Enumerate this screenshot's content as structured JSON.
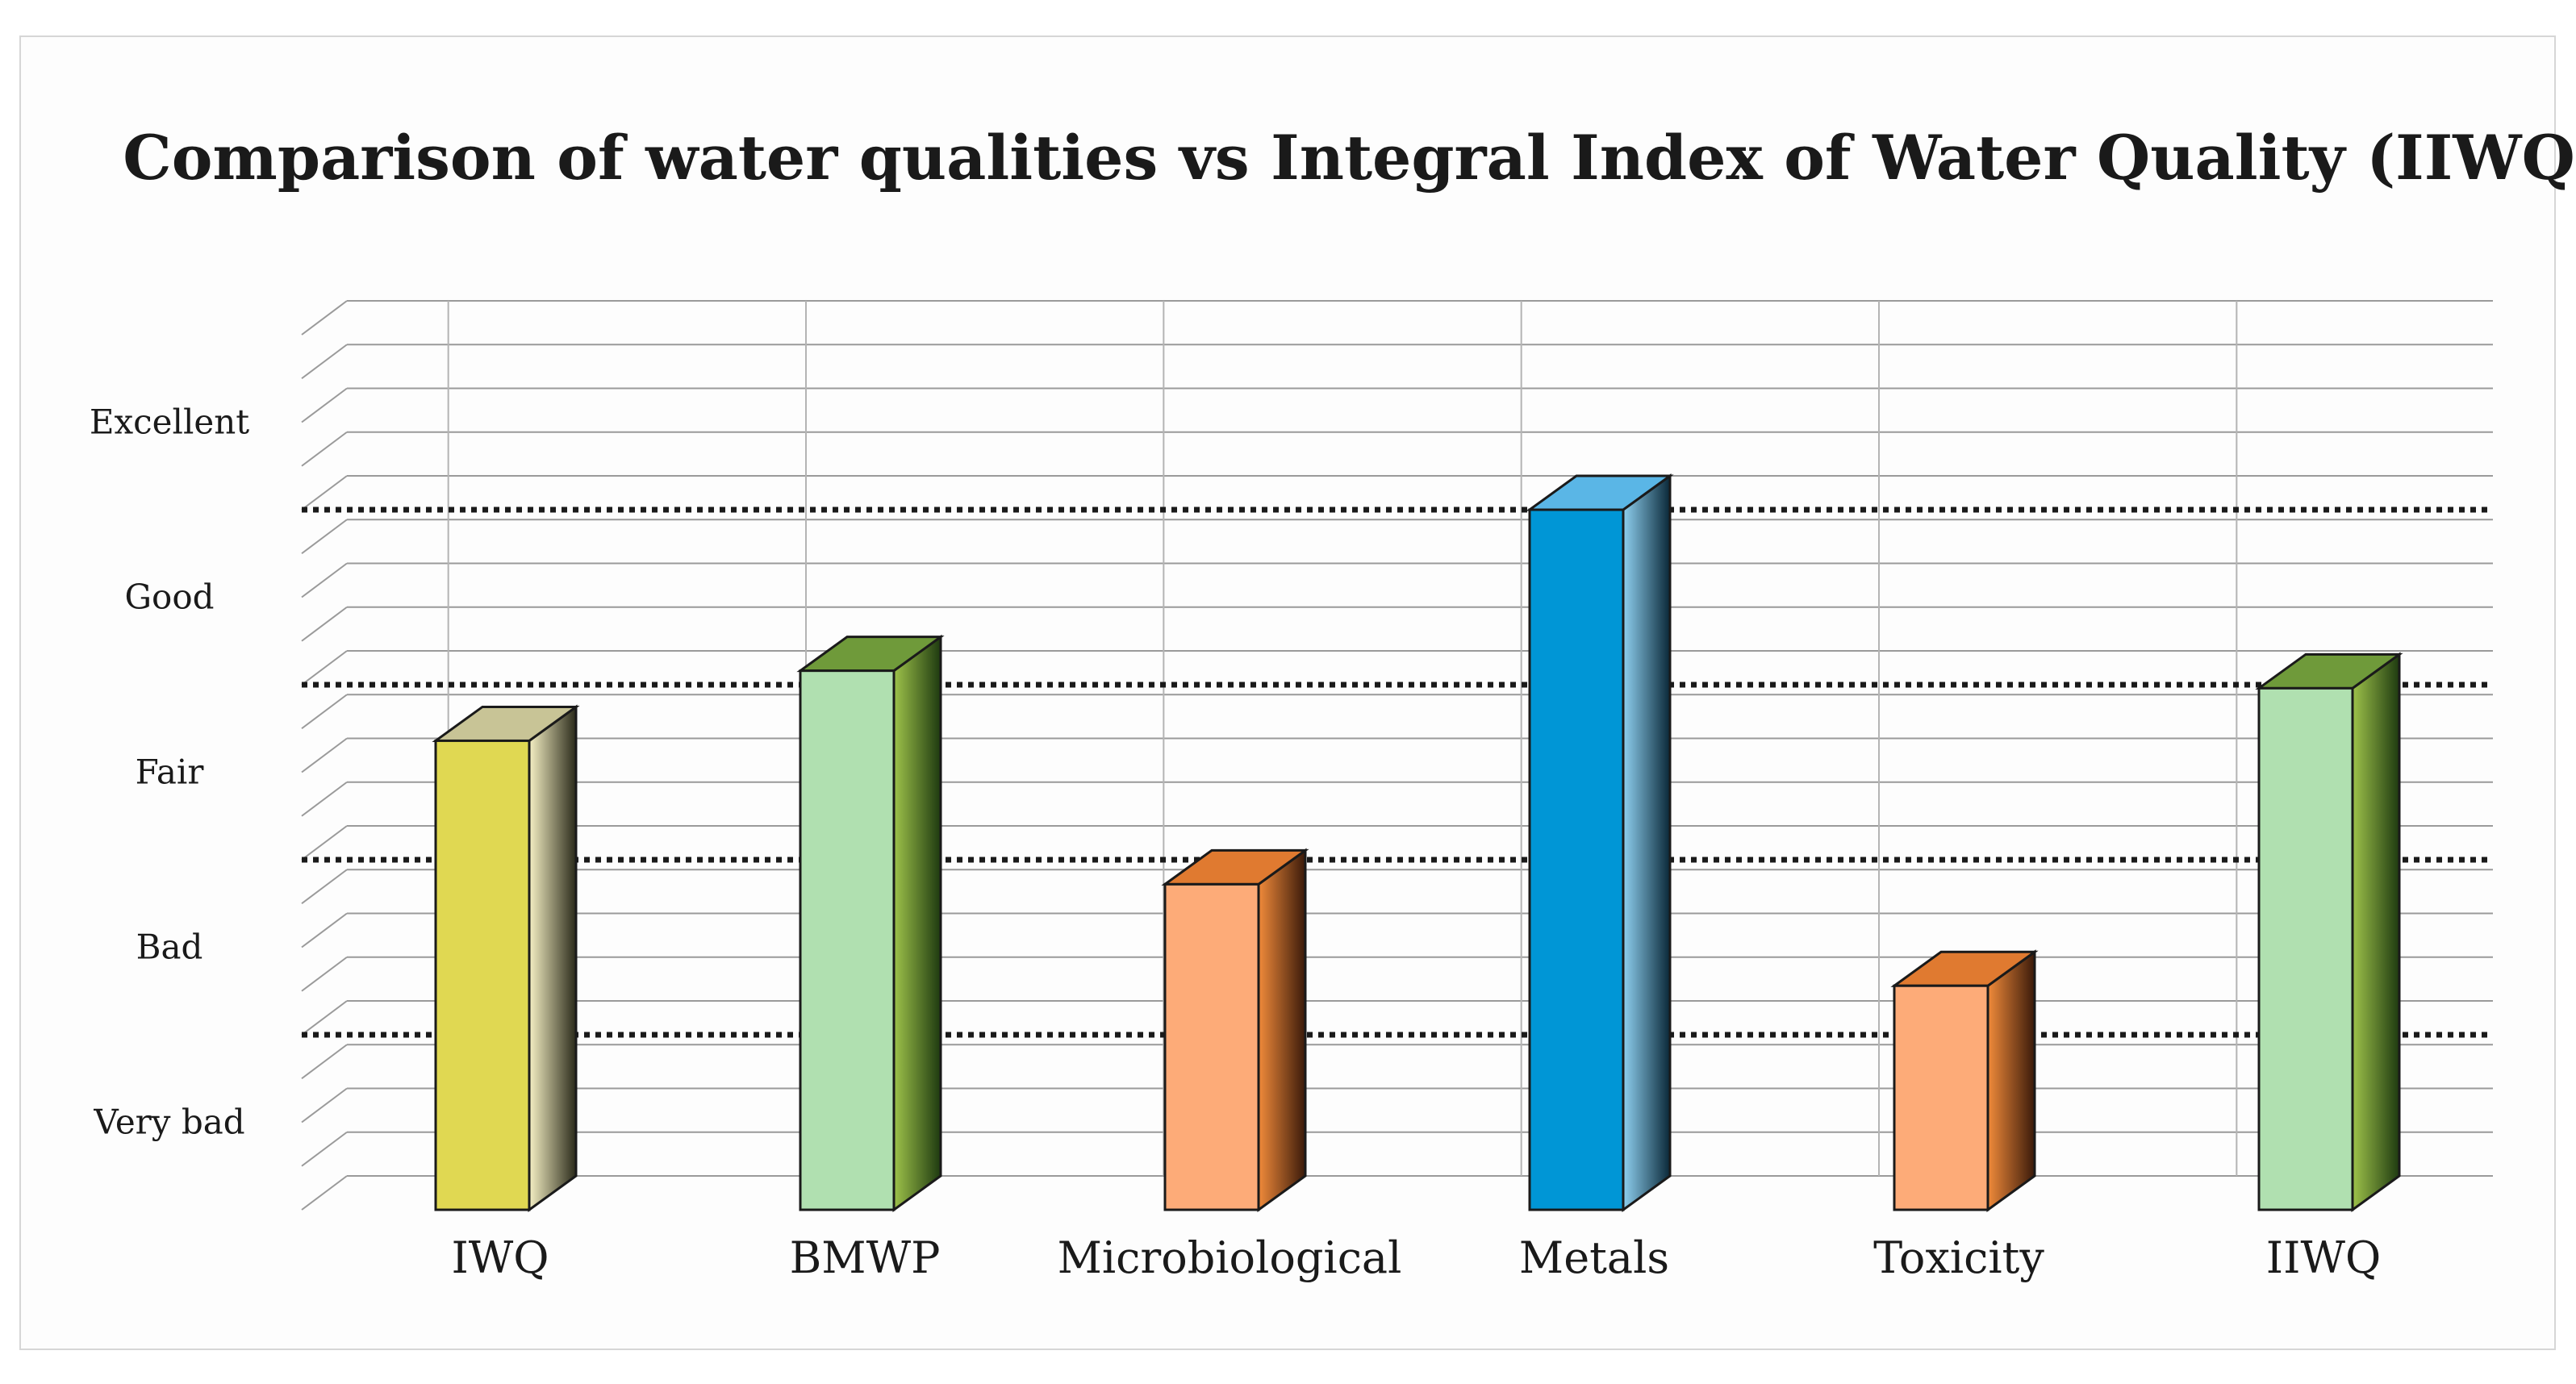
{
  "chart_data": {
    "type": "bar",
    "title": "Comparison of water qualities vs Integral Index of Water Quality (IIWQ)",
    "xlabel": "",
    "ylabel": "",
    "ylim": [
      0,
      5
    ],
    "grid": true,
    "quality_bands": [
      "Very bad",
      "Bad",
      "Fair",
      "Good",
      "Excellent"
    ],
    "band_thresholds": [
      1,
      2,
      3,
      4
    ],
    "categories": [
      "IWQ",
      "BMWP",
      "Microbiological",
      "Metals",
      "Toxicity",
      "IIWQ"
    ],
    "values": [
      2.68,
      3.08,
      1.86,
      4.0,
      1.28,
      2.98
    ],
    "colors": [
      {
        "front": "#e0d852",
        "side_light": "#f5f0c4",
        "side_dark": "#2a2a1a",
        "top": "#c8c496"
      },
      {
        "front": "#b0e0b0",
        "side_light": "#9ec24a",
        "side_dark": "#1e3a10",
        "top": "#6f9a3a"
      },
      {
        "front": "#fdab78",
        "side_light": "#f08a3a",
        "side_dark": "#3a1a0a",
        "top": "#e07a30"
      },
      {
        "front": "#0096d6",
        "side_light": "#8fd0f0",
        "side_dark": "#0a2838",
        "top": "#5ab6e6"
      },
      {
        "front": "#fdab78",
        "side_light": "#f08a3a",
        "side_dark": "#3a1a0a",
        "top": "#e07a30"
      },
      {
        "front": "#b0e0b0",
        "side_light": "#9ec24a",
        "side_dark": "#1e3a10",
        "top": "#6f9a3a"
      }
    ]
  }
}
